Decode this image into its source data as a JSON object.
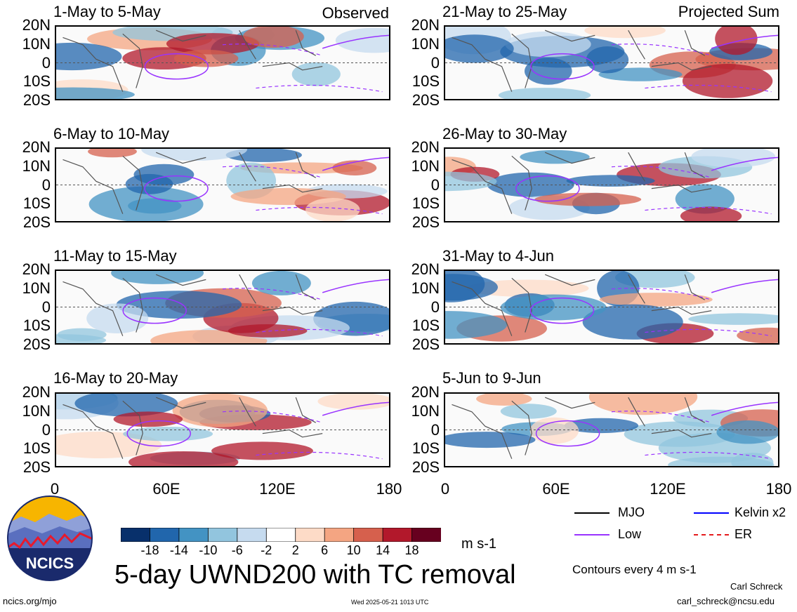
{
  "chart_data": {
    "type": "heatmap",
    "variable": "5-day UWND200 with TC removal",
    "units": "m s-1",
    "x_axis": {
      "range": [
        0,
        180
      ],
      "ticks": [
        "0",
        "60E",
        "120E",
        "180"
      ]
    },
    "y_axis": {
      "range": [
        -20,
        20
      ],
      "ticks": [
        "20N",
        "10N",
        "0",
        "10S",
        "20S"
      ]
    },
    "column_labels": {
      "left": "Observed",
      "right": "Projected Sum"
    },
    "panels_left": [
      {
        "title": "1-May to 5-May"
      },
      {
        "title": "6-May to 10-May"
      },
      {
        "title": "11-May to 15-May"
      },
      {
        "title": "16-May to 20-May"
      }
    ],
    "panels_right": [
      {
        "title": "21-May to 25-May"
      },
      {
        "title": "26-May to 30-May"
      },
      {
        "title": "31-May to 4-Jun"
      },
      {
        "title": "5-Jun to 9-Jun"
      }
    ],
    "colorbar": {
      "labels": [
        "-18",
        "-14",
        "-10",
        "-6",
        "-2",
        "2",
        "6",
        "10",
        "14",
        "18"
      ],
      "colors": [
        "#08306b",
        "#2166ac",
        "#4393c3",
        "#92c5de",
        "#c6dbef",
        "#ffffff",
        "#fddbc7",
        "#f4a582",
        "#d6604d",
        "#b2182b",
        "#67001f"
      ]
    },
    "contour_legend": [
      {
        "label": "MJO",
        "color": "#000000",
        "style": "solid"
      },
      {
        "label": "Kelvin x2",
        "color": "#0000ff",
        "style": "solid"
      },
      {
        "label": "Low",
        "color": "#9933ff",
        "style": "solid"
      },
      {
        "label": "ER",
        "color": "#e41a1c",
        "style": "dashed"
      }
    ],
    "contour_note": "Contours every 4 m s-1"
  },
  "title": "5-day UWND200 with TC removal",
  "logo_text": "NCICS",
  "footer": {
    "url": "ncics.org/mjo",
    "timestamp": "Wed 2025-05-21 1013 UTC",
    "author": "Carl Schreck",
    "email": "carl_schreck@ncsu.edu"
  }
}
